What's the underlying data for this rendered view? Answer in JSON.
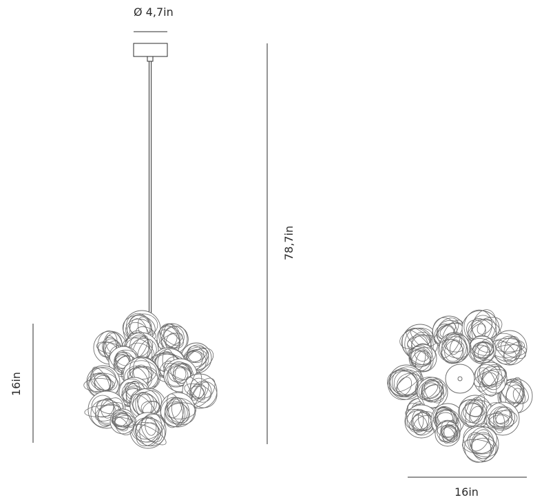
{
  "dimensions": {
    "canopy_diameter": "Ø 4,7in",
    "total_height": "78,7in",
    "fixture_height": "16in",
    "fixture_width": "16in"
  },
  "colors": {
    "line": "#2b2b2b",
    "wire": "#6b6b6b"
  }
}
